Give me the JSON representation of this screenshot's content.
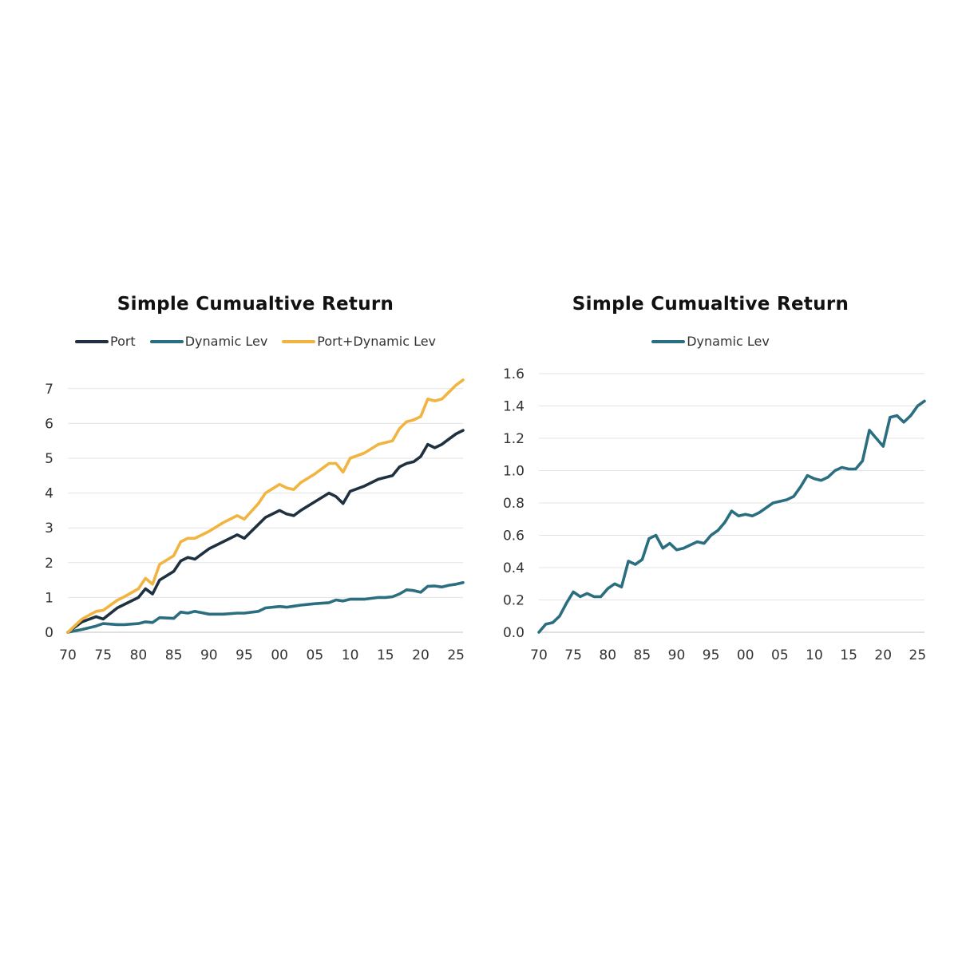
{
  "chart_data": [
    {
      "type": "line",
      "title": "Simple Cumualtive Return",
      "xlabel": "",
      "ylabel": "",
      "ylim": [
        0,
        7.5
      ],
      "xlim": [
        1970,
        2026
      ],
      "xticks": [
        1970,
        1975,
        1980,
        1985,
        1990,
        1995,
        2000,
        2005,
        2010,
        2015,
        2020,
        2025
      ],
      "xtick_labels": [
        "70",
        "75",
        "80",
        "85",
        "90",
        "95",
        "00",
        "05",
        "10",
        "15",
        "20",
        "25"
      ],
      "yticks": [
        0,
        1,
        2,
        3,
        4,
        5,
        6,
        7
      ],
      "ytick_labels": [
        "0",
        "1",
        "2",
        "3",
        "4",
        "5",
        "6",
        "7"
      ],
      "legend_position": "top-center",
      "grid": "horizontal",
      "series": [
        {
          "name": "Port",
          "color": "#1f3140",
          "x": [
            1970,
            1972,
            1974,
            1975,
            1977,
            1978,
            1980,
            1981,
            1982,
            1983,
            1985,
            1986,
            1987,
            1988,
            1990,
            1992,
            1994,
            1995,
            1997,
            1998,
            2000,
            2001,
            2002,
            2003,
            2005,
            2007,
            2008,
            2009,
            2010,
            2012,
            2014,
            2015,
            2016,
            2017,
            2018,
            2019,
            2020,
            2021,
            2022,
            2023,
            2024,
            2025,
            2026
          ],
          "values": [
            0,
            0.3,
            0.45,
            0.38,
            0.7,
            0.8,
            1.0,
            1.25,
            1.1,
            1.5,
            1.75,
            2.05,
            2.15,
            2.1,
            2.4,
            2.6,
            2.8,
            2.7,
            3.1,
            3.3,
            3.5,
            3.4,
            3.35,
            3.5,
            3.75,
            4.0,
            3.9,
            3.7,
            4.05,
            4.2,
            4.4,
            4.45,
            4.5,
            4.75,
            4.85,
            4.9,
            5.05,
            5.4,
            5.3,
            5.4,
            5.55,
            5.7,
            5.8
          ]
        },
        {
          "name": "Dynamic Lev",
          "color": "#2b6e80",
          "x": [
            1970,
            1972,
            1974,
            1975,
            1977,
            1978,
            1980,
            1981,
            1982,
            1983,
            1985,
            1986,
            1987,
            1988,
            1990,
            1992,
            1994,
            1995,
            1997,
            1998,
            2000,
            2001,
            2002,
            2003,
            2005,
            2007,
            2008,
            2009,
            2010,
            2012,
            2014,
            2015,
            2016,
            2017,
            2018,
            2019,
            2020,
            2021,
            2022,
            2023,
            2024,
            2025,
            2026
          ],
          "values": [
            0,
            0.08,
            0.18,
            0.25,
            0.22,
            0.22,
            0.25,
            0.3,
            0.28,
            0.42,
            0.4,
            0.58,
            0.55,
            0.6,
            0.52,
            0.52,
            0.55,
            0.55,
            0.6,
            0.7,
            0.74,
            0.72,
            0.75,
            0.78,
            0.82,
            0.85,
            0.93,
            0.9,
            0.95,
            0.95,
            1.0,
            1.0,
            1.02,
            1.1,
            1.22,
            1.2,
            1.15,
            1.32,
            1.33,
            1.3,
            1.35,
            1.38,
            1.43
          ]
        },
        {
          "name": "Port+Dynamic Lev",
          "color": "#f2b440",
          "x": [
            1970,
            1972,
            1974,
            1975,
            1977,
            1978,
            1980,
            1981,
            1982,
            1983,
            1985,
            1986,
            1987,
            1988,
            1990,
            1992,
            1994,
            1995,
            1997,
            1998,
            2000,
            2001,
            2002,
            2003,
            2005,
            2007,
            2008,
            2009,
            2010,
            2012,
            2014,
            2015,
            2016,
            2017,
            2018,
            2019,
            2020,
            2021,
            2022,
            2023,
            2024,
            2025,
            2026
          ],
          "values": [
            0,
            0.38,
            0.6,
            0.63,
            0.92,
            1.02,
            1.25,
            1.55,
            1.38,
            1.95,
            2.2,
            2.6,
            2.7,
            2.7,
            2.9,
            3.15,
            3.35,
            3.25,
            3.7,
            4.0,
            4.25,
            4.15,
            4.1,
            4.3,
            4.55,
            4.85,
            4.85,
            4.6,
            5.0,
            5.15,
            5.4,
            5.45,
            5.5,
            5.85,
            6.05,
            6.1,
            6.2,
            6.7,
            6.65,
            6.7,
            6.9,
            7.1,
            7.25
          ]
        }
      ]
    },
    {
      "type": "line",
      "title": "Simple Cumualtive Return",
      "xlabel": "",
      "ylabel": "",
      "ylim": [
        0,
        1.6
      ],
      "xlim": [
        1970,
        2026
      ],
      "xticks": [
        1970,
        1975,
        1980,
        1985,
        1990,
        1995,
        2000,
        2005,
        2010,
        2015,
        2020,
        2025
      ],
      "xtick_labels": [
        "70",
        "75",
        "80",
        "85",
        "90",
        "95",
        "00",
        "05",
        "10",
        "15",
        "20",
        "25"
      ],
      "yticks": [
        0,
        0.2,
        0.4,
        0.6,
        0.8,
        1.0,
        1.2,
        1.4,
        1.6
      ],
      "ytick_labels": [
        "0.0",
        "0.2",
        "0.4",
        "0.6",
        "0.8",
        "1.0",
        "1.2",
        "1.4",
        "1.6"
      ],
      "legend_position": "top-center",
      "grid": "horizontal",
      "series": [
        {
          "name": "Dynamic Lev",
          "color": "#2b6e80",
          "x": [
            1970,
            1971,
            1972,
            1973,
            1974,
            1975,
            1976,
            1977,
            1978,
            1979,
            1980,
            1981,
            1982,
            1983,
            1984,
            1985,
            1986,
            1987,
            1988,
            1989,
            1990,
            1991,
            1992,
            1993,
            1994,
            1995,
            1996,
            1997,
            1998,
            1999,
            2000,
            2001,
            2002,
            2003,
            2004,
            2005,
            2006,
            2007,
            2008,
            2009,
            2010,
            2011,
            2012,
            2013,
            2014,
            2015,
            2016,
            2017,
            2018,
            2019,
            2020,
            2021,
            2022,
            2023,
            2024,
            2025,
            2026
          ],
          "values": [
            0.0,
            0.05,
            0.06,
            0.1,
            0.18,
            0.25,
            0.22,
            0.24,
            0.22,
            0.22,
            0.27,
            0.3,
            0.28,
            0.44,
            0.42,
            0.45,
            0.58,
            0.6,
            0.52,
            0.55,
            0.51,
            0.52,
            0.54,
            0.56,
            0.55,
            0.6,
            0.63,
            0.68,
            0.75,
            0.72,
            0.73,
            0.72,
            0.74,
            0.77,
            0.8,
            0.81,
            0.82,
            0.84,
            0.9,
            0.97,
            0.95,
            0.94,
            0.96,
            1.0,
            1.02,
            1.01,
            1.01,
            1.06,
            1.25,
            1.2,
            1.15,
            1.33,
            1.34,
            1.3,
            1.34,
            1.4,
            1.43
          ]
        }
      ]
    }
  ]
}
